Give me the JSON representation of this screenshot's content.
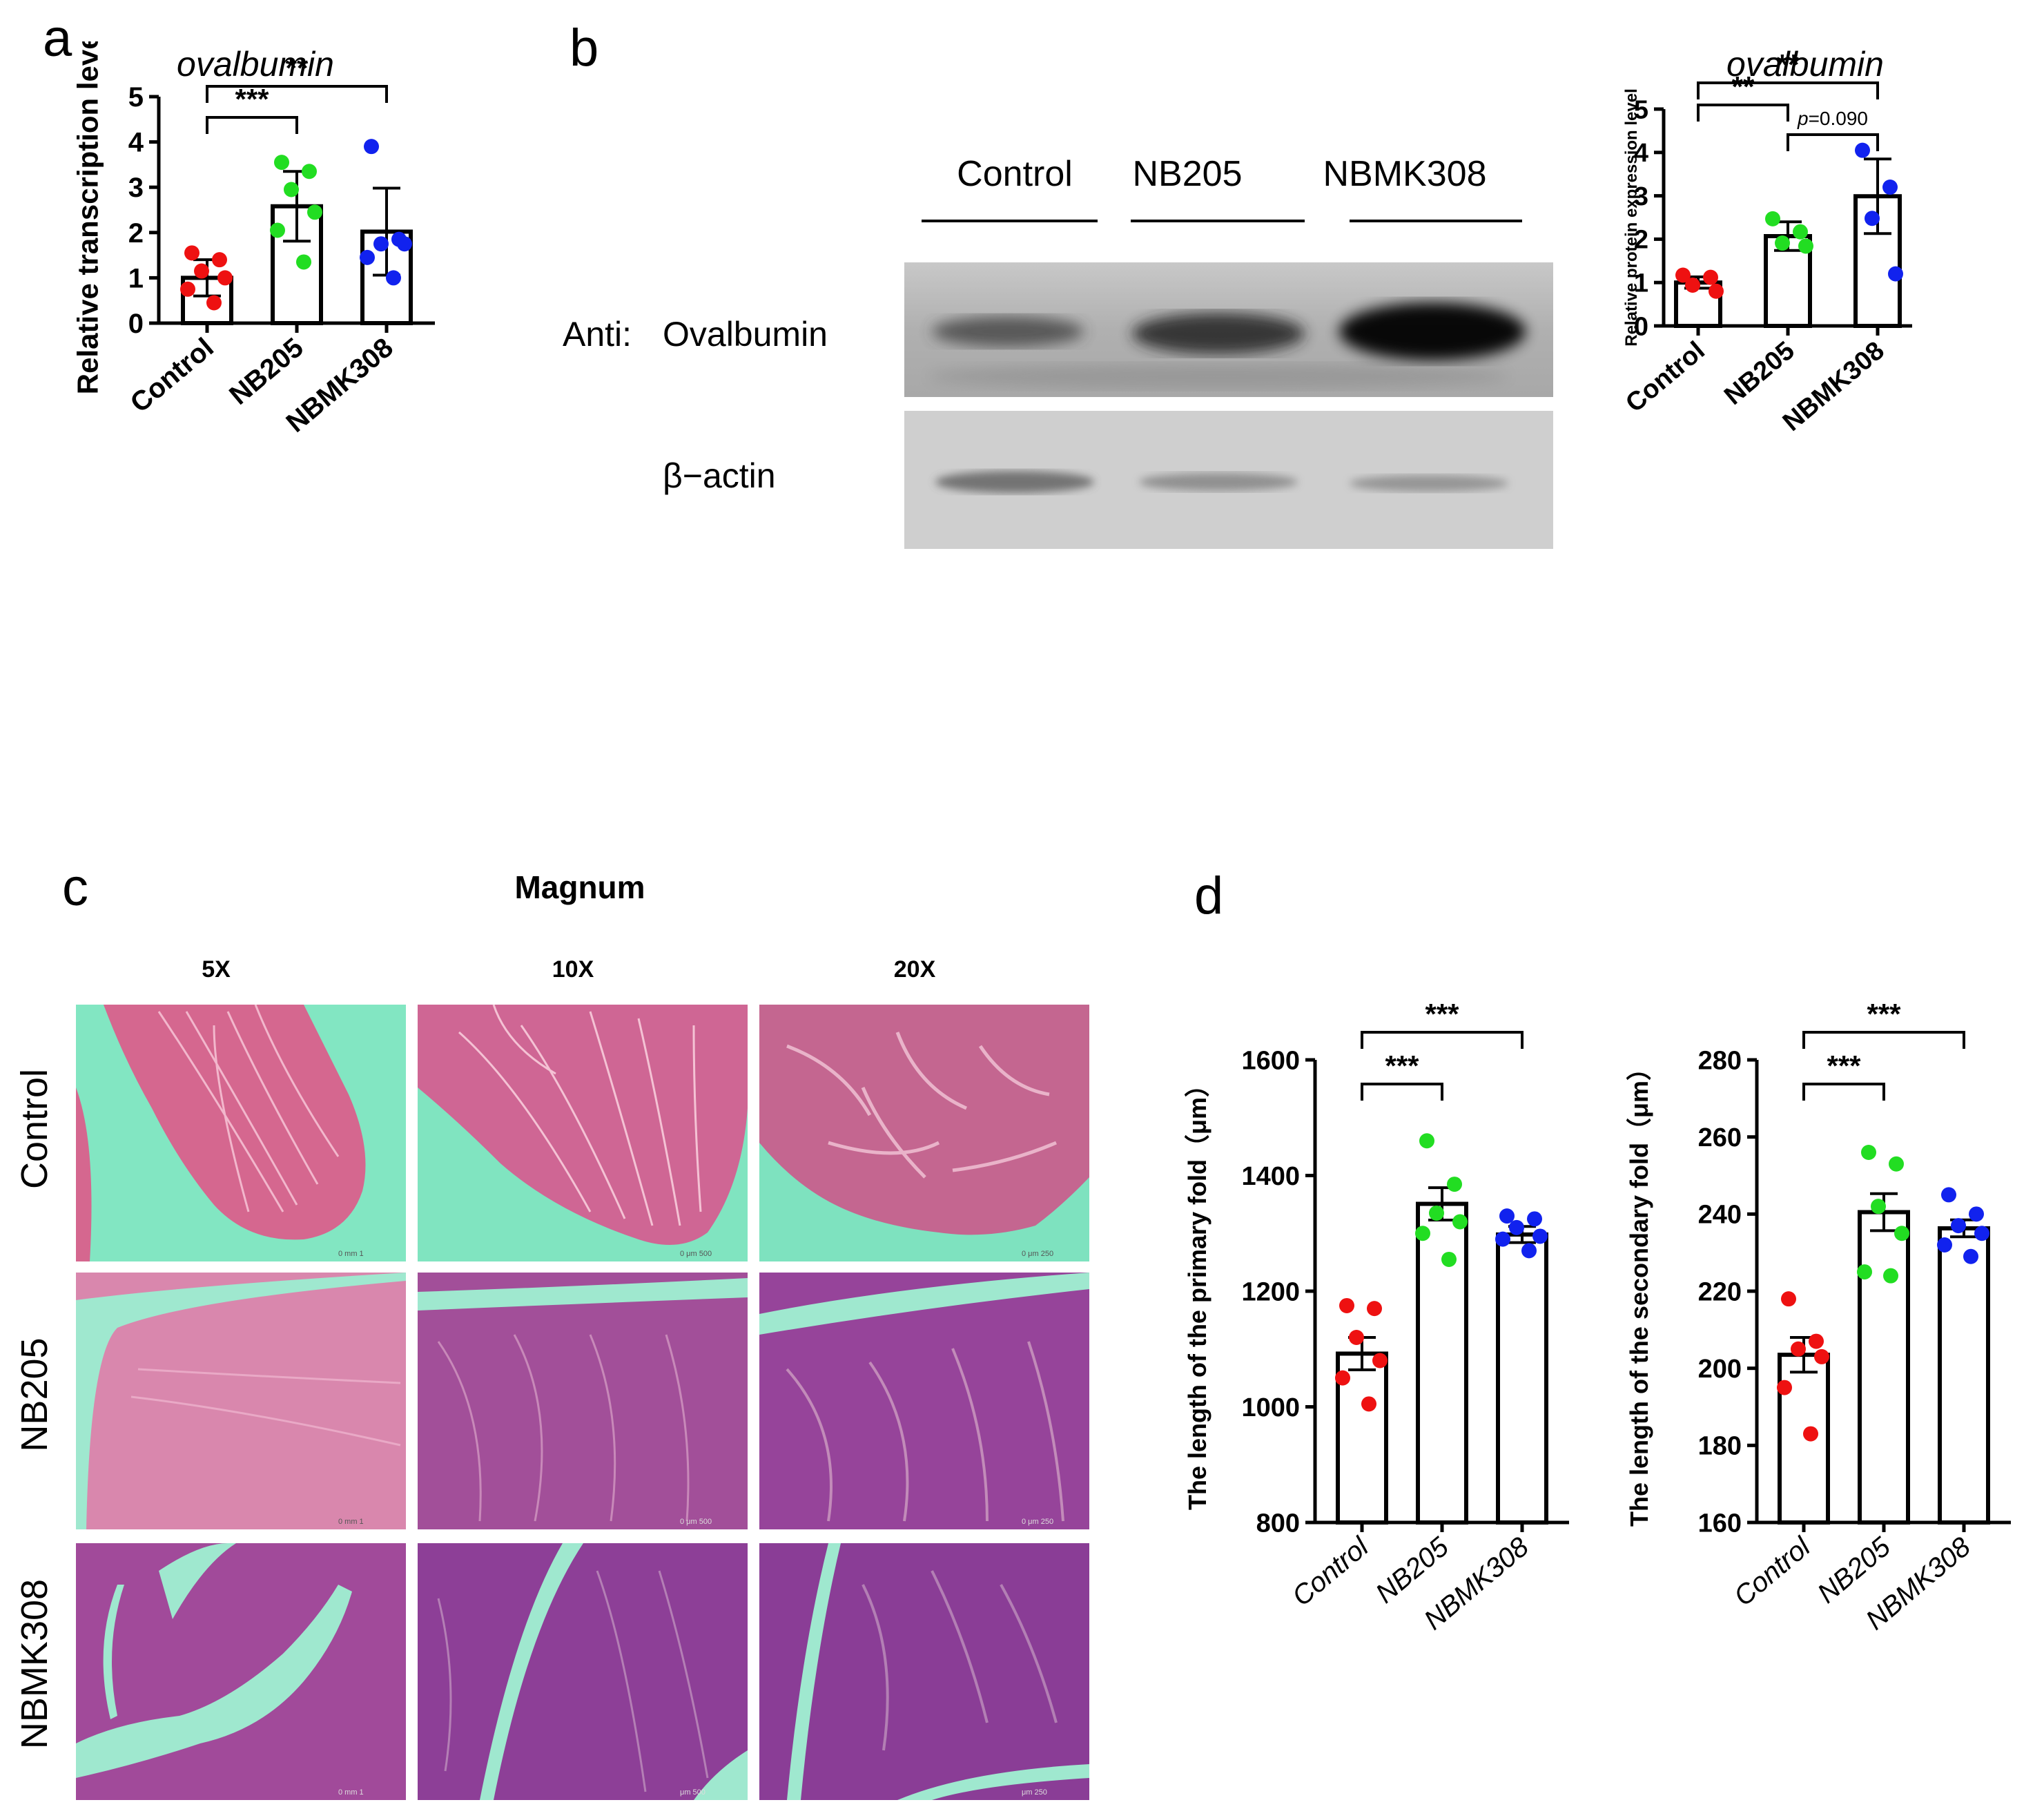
{
  "panel_labels": {
    "a": "a",
    "b": "b",
    "c": "c",
    "d": "d"
  },
  "colors": {
    "control": "#ee1111",
    "nb205": "#22dd22",
    "nbmk308": "#1122ee",
    "histo_bg": "#7fe3bf",
    "histo_pink": "#d9709d",
    "histo_purple": "#7a3f98"
  },
  "blot": {
    "lanes": [
      "Control",
      "NB205",
      "NBMK308"
    ],
    "anti_label": "Anti:",
    "ovalbumin_label": "Ovalbumin",
    "actin_label": "β−actin"
  },
  "histology": {
    "title": "Magnum",
    "magnifications": [
      "5X",
      "10X",
      "20X"
    ],
    "rows": [
      "Control",
      "NB205",
      "NBMK308"
    ],
    "scale_bars": [
      [
        "0   mm   1",
        "0    μm  500",
        "0    μm  250"
      ],
      [
        "0   mm   1",
        "0    μm  500",
        "0    μm  250"
      ],
      [
        "0   mm   1",
        "μm  500",
        "μm  250"
      ]
    ]
  },
  "chart_data": [
    {
      "id": "a",
      "type": "bar",
      "title": "ovalbumin",
      "categories": [
        "Control",
        "NB205",
        "NBMK308"
      ],
      "ylabel": "Relative transcription level",
      "ylim": [
        0,
        5
      ],
      "yticks": [
        0,
        1,
        2,
        3,
        4,
        5
      ],
      "means": [
        1.0,
        2.58,
        2.02
      ],
      "sd": [
        0.4,
        0.77,
        0.96
      ],
      "points": [
        [
          1.55,
          1.4,
          1.15,
          1.0,
          0.75,
          0.45
        ],
        [
          3.55,
          3.35,
          2.95,
          2.45,
          2.05,
          1.35
        ],
        [
          3.9,
          1.85,
          1.75,
          1.75,
          1.45,
          1.0
        ]
      ],
      "comparisons": [
        {
          "from": 0,
          "to": 1,
          "label": "***"
        },
        {
          "from": 0,
          "to": 2,
          "label": "**"
        }
      ]
    },
    {
      "id": "b",
      "type": "bar",
      "title": "ovalbumin",
      "categories": [
        "Control",
        "NB205",
        "NBMK308"
      ],
      "ylabel": "Relative protein expression level",
      "ylim": [
        0,
        5
      ],
      "yticks": [
        0,
        1,
        2,
        3,
        4,
        5
      ],
      "means": [
        1.0,
        2.07,
        2.99
      ],
      "sd": [
        0.13,
        0.33,
        0.86
      ],
      "points": [
        [
          1.17,
          1.12,
          0.94,
          0.8
        ],
        [
          2.47,
          2.17,
          1.91,
          1.84
        ],
        [
          4.05,
          3.2,
          2.48,
          1.2
        ]
      ],
      "comparisons": [
        {
          "from": 0,
          "to": 1,
          "label": "**"
        },
        {
          "from": 1,
          "to": 2,
          "label": "p=0.090"
        },
        {
          "from": 0,
          "to": 2,
          "label": "**"
        }
      ]
    },
    {
      "id": "d1",
      "type": "bar",
      "title": "",
      "categories": [
        "Control",
        "NB205",
        "NBMK308"
      ],
      "ylabel": "The length of the primary fold（μm）",
      "ylim": [
        800,
        1600
      ],
      "yticks": [
        800,
        1000,
        1200,
        1400,
        1600
      ],
      "means": [
        1092,
        1351,
        1298
      ],
      "sem": [
        28,
        28,
        14
      ],
      "points": [
        [
          1175,
          1170,
          1120,
          1080,
          1050,
          1005
        ],
        [
          1460,
          1385,
          1335,
          1320,
          1300,
          1255
        ],
        [
          1330,
          1325,
          1310,
          1295,
          1290,
          1270
        ]
      ],
      "comparisons": [
        {
          "from": 0,
          "to": 1,
          "label": "***"
        },
        {
          "from": 0,
          "to": 2,
          "label": "***"
        }
      ]
    },
    {
      "id": "d2",
      "type": "bar",
      "title": "",
      "categories": [
        "Control",
        "NB205",
        "NBMK308"
      ],
      "ylabel": "The length of the secondary fold（μm）",
      "ylim": [
        160,
        280
      ],
      "yticks": [
        160,
        180,
        200,
        220,
        240,
        260,
        280
      ],
      "means": [
        203.5,
        240.5,
        236.3
      ],
      "sem": [
        4.5,
        4.8,
        2.2
      ],
      "points": [
        [
          218,
          207,
          205,
          203,
          195,
          183
        ],
        [
          256,
          253,
          242,
          235,
          225,
          224
        ],
        [
          245,
          240,
          237,
          235,
          232,
          229
        ]
      ],
      "comparisons": [
        {
          "from": 0,
          "to": 1,
          "label": "***"
        },
        {
          "from": 0,
          "to": 2,
          "label": "***"
        }
      ]
    }
  ]
}
